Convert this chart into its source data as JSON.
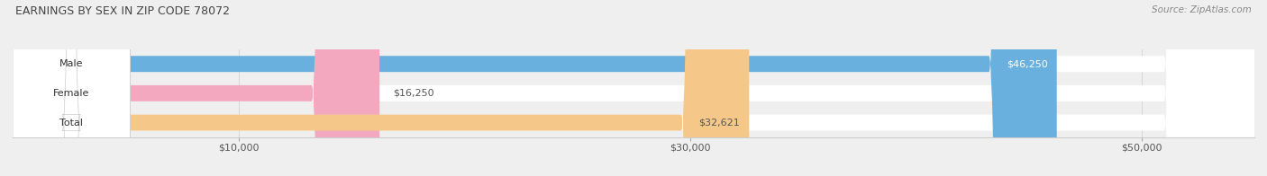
{
  "title": "EARNINGS BY SEX IN ZIP CODE 78072",
  "source": "Source: ZipAtlas.com",
  "categories": [
    "Male",
    "Female",
    "Total"
  ],
  "values": [
    46250,
    16250,
    32621
  ],
  "labels": [
    "$46,250",
    "$16,250",
    "$32,621"
  ],
  "bar_colors": [
    "#6ab0de",
    "#f4a8c0",
    "#f5c88a"
  ],
  "label_colors": [
    "#ffffff",
    "#555555",
    "#555555"
  ],
  "background_color": "#efefef",
  "xlim": [
    0,
    55000
  ],
  "xticks": [
    10000,
    30000,
    50000
  ],
  "xticklabels": [
    "$10,000",
    "$30,000",
    "$50,000"
  ],
  "title_fontsize": 9,
  "label_fontsize": 8,
  "tick_fontsize": 8,
  "cat_fontsize": 8,
  "source_fontsize": 7.5
}
